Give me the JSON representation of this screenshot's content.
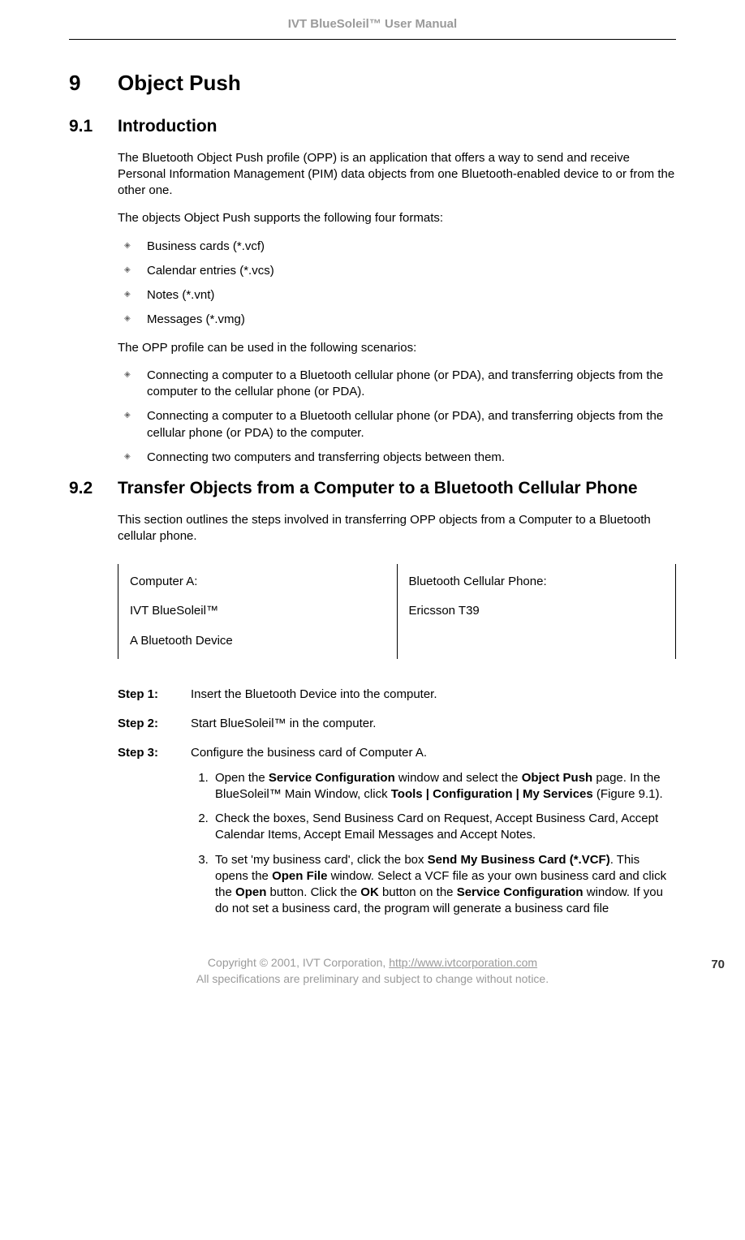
{
  "header": {
    "title": "IVT BlueSoleil™ User Manual"
  },
  "section": {
    "h1_num": "9",
    "h1_txt": "Object Push",
    "h2a_num": "9.1",
    "h2a_txt": "Introduction",
    "p1": "The Bluetooth Object Push profile (OPP) is an application that offers a way to send and receive Personal Information Management (PIM) data objects from one Bluetooth-enabled device to or from the other one.",
    "p2": "The objects Object Push supports the following four formats:",
    "formats": {
      "0": "Business cards (*.vcf)",
      "1": "Calendar entries (*.vcs)",
      "2": "Notes (*.vnt)",
      "3": "Messages (*.vmg)"
    },
    "p3": "The OPP profile can be used in the following scenarios:",
    "scenarios": {
      "0": "Connecting a computer to a Bluetooth cellular phone (or PDA), and transferring objects from the computer to the cellular phone (or PDA).",
      "1": "Connecting a computer to a Bluetooth cellular phone (or PDA), and transferring objects from the cellular phone (or PDA) to the computer.",
      "2": "Connecting two computers and transferring objects between them."
    },
    "h2b_num": "9.2",
    "h2b_txt": "Transfer Objects from a Computer to a Bluetooth Cellular Phone",
    "p4": "This section outlines the steps involved in transferring OPP objects from a Computer to a Bluetooth cellular phone.",
    "table": {
      "left": {
        "l1": "Computer A:",
        "l2": "IVT BlueSoleil™",
        "l3": "A Bluetooth Device"
      },
      "right": {
        "l1": "Bluetooth Cellular Phone:",
        "l2": "Ericsson T39"
      }
    },
    "steps": {
      "s1_label": "Step 1:",
      "s1_body": "Insert the Bluetooth Device into the computer.",
      "s2_label": "Step 2:",
      "s2_body": "Start BlueSoleil™ in the computer.",
      "s3_label": "Step 3:",
      "s3_body": "Configure the business card of Computer A.",
      "s3_sub": {
        "a_pre": "Open the ",
        "a_b1": "Service Configuration",
        "a_mid1": " window and select the ",
        "a_b2": "Object Push",
        "a_mid2": " page. In the BlueSoleil™ Main Window, click ",
        "a_b3": "Tools | Configuration | My Services",
        "a_post": " (Figure 9.1).",
        "b": "Check the boxes, Send Business Card on Request, Accept Business Card, Accept Calendar Items, Accept Email Messages and Accept Notes.",
        "c_pre": "To set 'my business card', click the box ",
        "c_b1": "Send My Business Card (*.VCF)",
        "c_mid1": ". This opens the ",
        "c_b2": "Open File",
        "c_mid2": " window. Select a VCF file as your own business card and click the ",
        "c_b3": "Open",
        "c_mid3": " button. Click the ",
        "c_b4": "OK",
        "c_mid4": " button on the ",
        "c_b5": "Service Configuration",
        "c_post": " window. If you do not set a business card, the program will generate a business card file"
      }
    }
  },
  "footer": {
    "line1_pre": "Copyright © 2001, IVT Corporation, ",
    "line1_link": "http://www.ivtcorporation.com",
    "line2": "All specifications are preliminary and subject to change without notice.",
    "page": "70"
  }
}
